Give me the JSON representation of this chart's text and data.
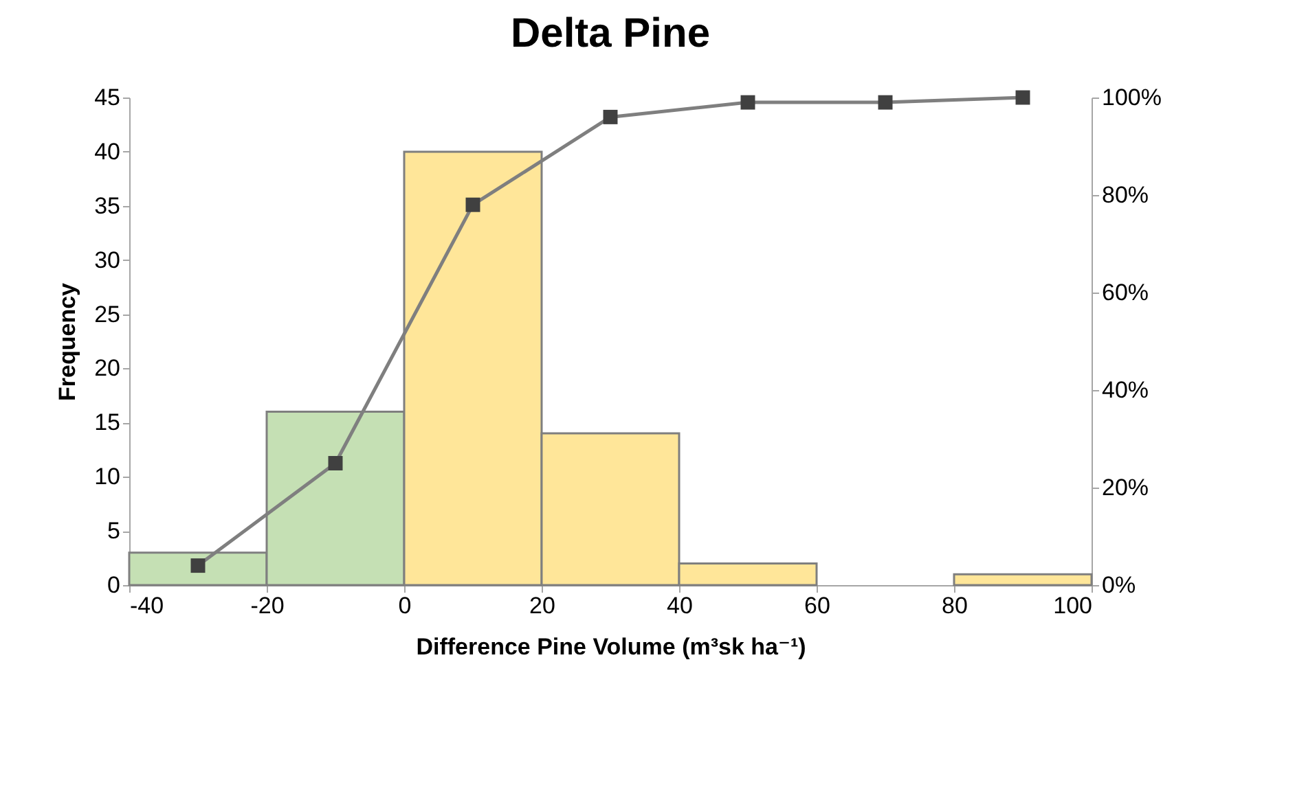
{
  "chart_data": {
    "type": "histogram",
    "title": "Delta Pine",
    "xlabel": "Difference Pine Volume (m³sk ha⁻¹)",
    "ylabel": "Frequency",
    "bins": [
      -40,
      -20,
      0,
      20,
      40,
      60,
      80,
      100
    ],
    "xlim": [
      -40,
      100
    ],
    "xticks": [
      -40,
      -20,
      0,
      20,
      40,
      60,
      80,
      100
    ],
    "ylim": [
      0,
      45
    ],
    "yticks": [
      0,
      5,
      10,
      15,
      20,
      25,
      30,
      35,
      40,
      45
    ],
    "y2lim": [
      0,
      100
    ],
    "y2ticks": [
      {
        "value": 0,
        "label": "0%"
      },
      {
        "value": 20,
        "label": "20%"
      },
      {
        "value": 40,
        "label": "40%"
      },
      {
        "value": 60,
        "label": "60%"
      },
      {
        "value": 80,
        "label": "80%"
      },
      {
        "value": 100,
        "label": "100%"
      }
    ],
    "grid": false,
    "series": [
      {
        "values": [
          3,
          16,
          40,
          14,
          2,
          0,
          1
        ],
        "colors": [
          "#c5e0b4",
          "#c5e0b4",
          "#ffe699",
          "#ffe699",
          "#ffe699",
          null,
          "#ffe699"
        ]
      },
      {
        "type": "line",
        "axis": "y2",
        "marker": "square",
        "color": "#7f7f7f",
        "x": [
          -30,
          -10,
          10,
          30,
          50,
          70,
          90
        ],
        "values": [
          4,
          25,
          78,
          96,
          99,
          99,
          100
        ]
      }
    ]
  }
}
